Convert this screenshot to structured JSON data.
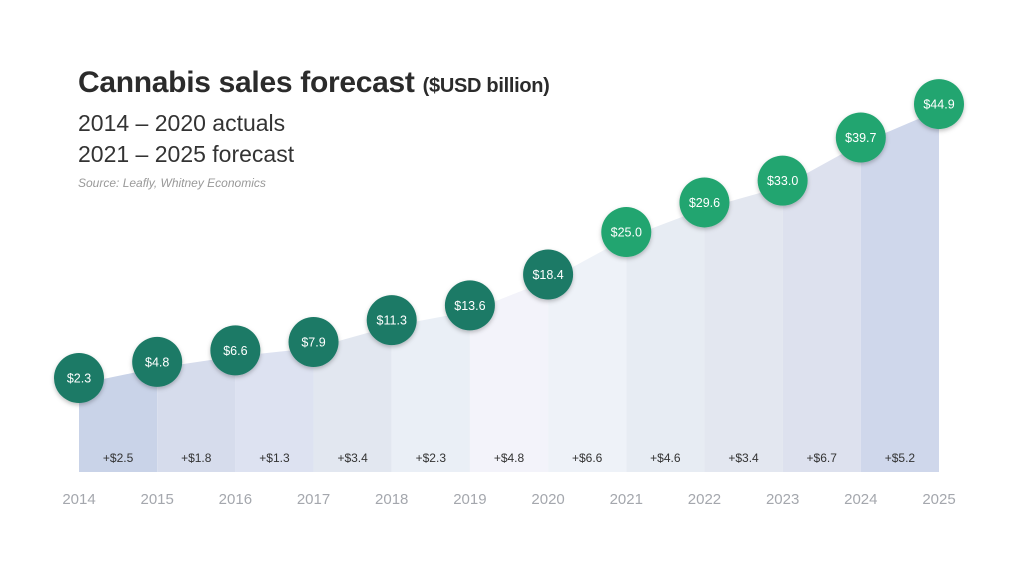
{
  "chart_data": {
    "type": "area",
    "title": "Cannabis sales forecast",
    "title_unit": "($USD billion)",
    "subtitle_lines": [
      "2014 – 2020 actuals",
      "2021 – 2025 forecast"
    ],
    "source": "Source: Leafly, Whitney Economics",
    "x": [
      "2014",
      "2015",
      "2016",
      "2017",
      "2018",
      "2019",
      "2020",
      "2021",
      "2022",
      "2023",
      "2024",
      "2025"
    ],
    "values": [
      2.3,
      4.8,
      6.6,
      7.9,
      11.3,
      13.6,
      18.4,
      25.0,
      29.6,
      33.0,
      39.7,
      44.9
    ],
    "value_labels": [
      "$2.3",
      "$4.8",
      "$6.6",
      "$7.9",
      "$11.3",
      "$13.6",
      "$18.4",
      "$25.0",
      "$29.6",
      "$33.0",
      "$39.7",
      "$44.9"
    ],
    "delta_labels": [
      "+$2.5",
      "+$1.8",
      "+$1.3",
      "+$3.4",
      "+$2.3",
      "+$4.8",
      "+$6.6",
      "+$4.6",
      "+$3.4",
      "+$6.7",
      "+$5.2"
    ],
    "actual_years_color": "#1b7a66",
    "forecast_years_color": "#23a56f",
    "grid": false,
    "legend": "none"
  }
}
